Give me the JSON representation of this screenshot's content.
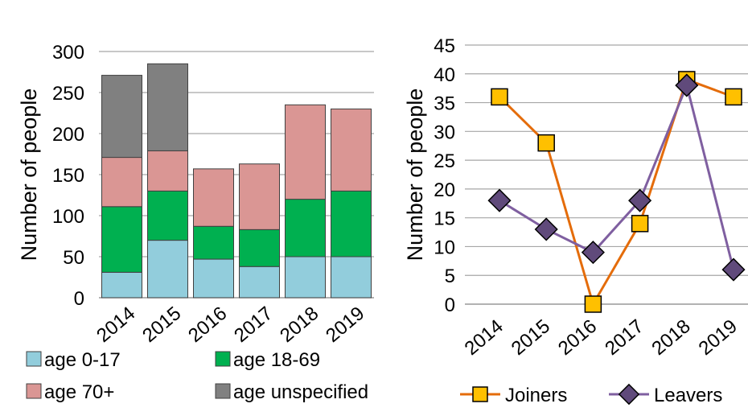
{
  "chart_data": [
    {
      "type": "bar",
      "stacked": true,
      "title": "",
      "xlabel": "",
      "ylabel": "Number of people",
      "ylim": [
        0,
        300
      ],
      "yticks": [
        0,
        50,
        100,
        150,
        200,
        250,
        300
      ],
      "categories": [
        "2014",
        "2015",
        "2016",
        "2017",
        "2018",
        "2019"
      ],
      "series": [
        {
          "name": "age 0-17",
          "color": "#92cddc",
          "values": [
            31,
            70,
            47,
            38,
            50,
            50
          ]
        },
        {
          "name": "age 18-69",
          "color": "#00b050",
          "values": [
            80,
            60,
            40,
            45,
            70,
            80
          ]
        },
        {
          "name": "age 70+",
          "color": "#da9694",
          "values": [
            60,
            49,
            70,
            80,
            115,
            100
          ]
        },
        {
          "name": "age unspecified",
          "color": "#808080",
          "values": [
            100,
            106,
            0,
            0,
            0,
            0
          ]
        }
      ],
      "grid": true,
      "legend": "bottom"
    },
    {
      "type": "line",
      "title": "",
      "xlabel": "",
      "ylabel": "Number of people",
      "ylim": [
        0,
        45
      ],
      "yticks": [
        0,
        5,
        10,
        15,
        20,
        25,
        30,
        35,
        40,
        45
      ],
      "categories": [
        "2014",
        "2015",
        "2016",
        "2017",
        "2018",
        "2019"
      ],
      "series": [
        {
          "name": "Joiners",
          "color": "#e46c0a",
          "marker": "square",
          "marker_fill": "#ffc000",
          "values": [
            36,
            28,
            0,
            14,
            39,
            36
          ]
        },
        {
          "name": "Leavers",
          "color": "#7f5fa0",
          "marker": "diamond",
          "marker_fill": "#604a7b",
          "values": [
            18,
            13,
            9,
            18,
            38,
            6
          ]
        }
      ],
      "grid": true,
      "legend": "bottom"
    }
  ]
}
